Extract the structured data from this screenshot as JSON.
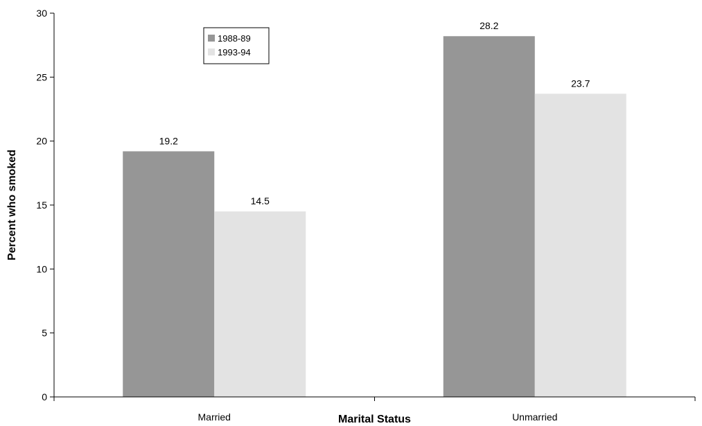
{
  "chart_data": {
    "type": "bar",
    "title": "",
    "xlabel": "Marital Status",
    "ylabel": "Percent who smoked",
    "categories": [
      "Married",
      "Unmarried"
    ],
    "series": [
      {
        "name": "1988-89",
        "values": [
          19.2,
          28.2
        ],
        "color": "#969696"
      },
      {
        "name": "1993-94",
        "values": [
          14.5,
          23.7
        ],
        "color": "#e3e3e3"
      }
    ],
    "ylim": [
      0,
      30
    ],
    "yticks": [
      0,
      5,
      10,
      15,
      20,
      25,
      30
    ],
    "data_labels": true,
    "grid": false,
    "legend_position": "top-left inside plot"
  }
}
